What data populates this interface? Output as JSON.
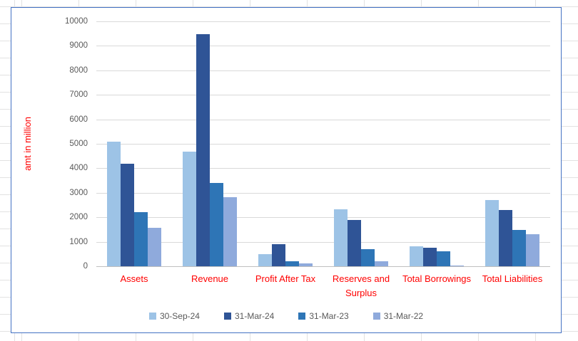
{
  "chart_data": {
    "type": "bar",
    "title": "",
    "xlabel": "",
    "ylabel": "amt in million",
    "ylim": [
      0,
      10000
    ],
    "ytick_step": 1000,
    "grid": true,
    "legend_position": "bottom",
    "categories": [
      "Assets",
      "Revenue",
      "Profit After Tax",
      "Reserves and Surplus",
      "Total Borrowings",
      "Total Liabilities"
    ],
    "series": [
      {
        "name": "30-Sep-24",
        "color": "#9DC3E6",
        "values": [
          5100,
          4670,
          500,
          2330,
          805,
          2700
        ]
      },
      {
        "name": "31-Mar-24",
        "color": "#2F5496",
        "values": [
          4200,
          9480,
          900,
          1890,
          755,
          2300
        ]
      },
      {
        "name": "31-Mar-23",
        "color": "#2E75B6",
        "values": [
          2200,
          3400,
          210,
          710,
          600,
          1490
        ]
      },
      {
        "name": "31-Mar-22",
        "color": "#8FAADC",
        "values": [
          1560,
          2830,
          115,
          195,
          25,
          1320
        ]
      }
    ],
    "colors": {
      "category_label": "#FF0000",
      "axis_title": "#FF0000",
      "tick_label": "#595959",
      "gridline": "#D9D9D9",
      "axis_line": "#BFBFBF",
      "chart_border": "#4472C4",
      "sheet_gridline": "#E2E2E2"
    }
  }
}
